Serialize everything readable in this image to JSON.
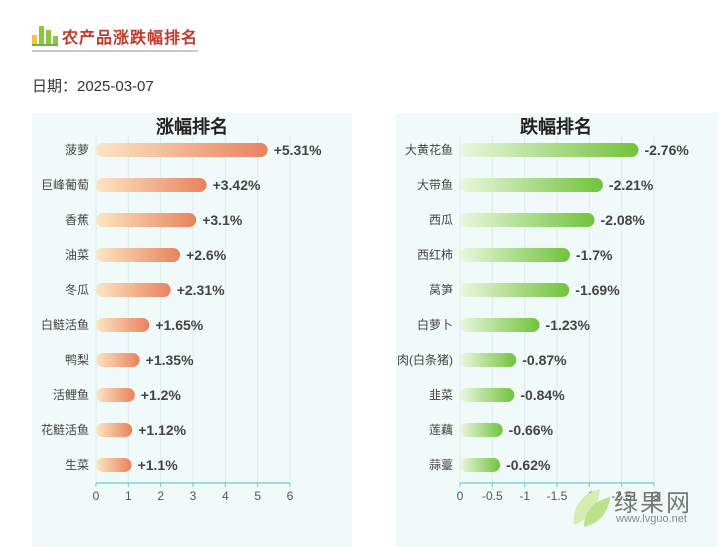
{
  "header": {
    "title": "农产品涨跌幅排名",
    "date_label": "日期：2025-03-07"
  },
  "colors": {
    "title": "#c0392b",
    "rise_bar_start": "#fce6c4",
    "rise_bar_end": "#e8825e",
    "fall_bar_start": "#eaf7df",
    "fall_bar_end": "#72c23c",
    "panel_bg": "#f0faf8",
    "axis_line": "#6fc6d8"
  },
  "watermark": {
    "name": "绿果网",
    "url": "www.lvguo.net"
  },
  "chart_data": [
    {
      "type": "bar",
      "orientation": "horizontal",
      "title": "涨幅排名",
      "categories": [
        "菠萝",
        "巨峰葡萄",
        "香蕉",
        "油菜",
        "冬瓜",
        "白鲢活鱼",
        "鸭梨",
        "活鲤鱼",
        "花鲢活鱼",
        "生菜"
      ],
      "values": [
        5.31,
        3.42,
        3.1,
        2.6,
        2.31,
        1.65,
        1.35,
        1.2,
        1.12,
        1.1
      ],
      "data_labels": [
        "+5.31%",
        "+3.42%",
        "+3.1%",
        "+2.6%",
        "+2.31%",
        "+1.65%",
        "+1.35%",
        "+1.2%",
        "+1.12%",
        "+1.1%"
      ],
      "xlim": [
        0,
        6
      ],
      "xticks": [
        0,
        1,
        2,
        3,
        4,
        5,
        6
      ],
      "xtick_labels": [
        "0",
        "1",
        "2",
        "3",
        "4",
        "5",
        "6"
      ],
      "grid": true
    },
    {
      "type": "bar",
      "orientation": "horizontal",
      "title": "跌幅排名",
      "categories": [
        "大黄花鱼",
        "大带鱼",
        "西瓜",
        "西红柿",
        "莴笋",
        "白萝卜",
        "猪肉(白条猪)",
        "韭菜",
        "莲藕",
        "蒜薹"
      ],
      "values": [
        -2.76,
        -2.21,
        -2.08,
        -1.7,
        -1.69,
        -1.23,
        -0.87,
        -0.84,
        -0.66,
        -0.62
      ],
      "data_labels": [
        "-2.76%",
        "-2.21%",
        "-2.08%",
        "-1.7%",
        "-1.69%",
        "-1.23%",
        "-0.87%",
        "-0.84%",
        "-0.66%",
        "-0.62%"
      ],
      "xlim": [
        0,
        -3
      ],
      "xticks": [
        0,
        -0.5,
        -1,
        -1.5,
        -2,
        -2.5,
        -3
      ],
      "xtick_labels": [
        "0",
        "-0.5",
        "-1",
        "-1.5",
        "-2",
        "-2.5",
        "-3"
      ],
      "grid": true
    }
  ]
}
